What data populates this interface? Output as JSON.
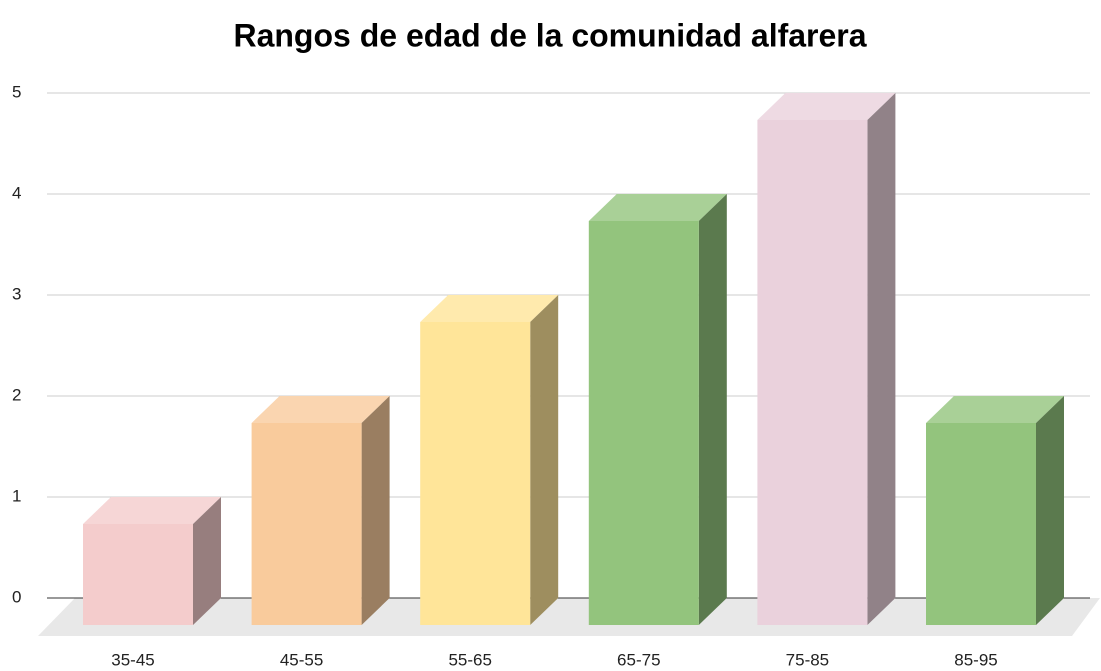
{
  "chart_data": {
    "type": "bar3d",
    "title": "Rangos de edad de la comunidad alfarera",
    "categories": [
      "35-45",
      "45-55",
      "55-65",
      "65-75",
      "75-85",
      "85-95"
    ],
    "values": [
      1,
      2,
      3,
      4,
      5,
      2
    ],
    "colors": [
      "#f4cccc",
      "#f9cb9c",
      "#ffe599",
      "#93c47d",
      "#ead1dc",
      "#93c47d"
    ],
    "ylim": [
      0,
      5
    ],
    "yticks": [
      0,
      1,
      2,
      3,
      4,
      5
    ],
    "grid": true
  }
}
